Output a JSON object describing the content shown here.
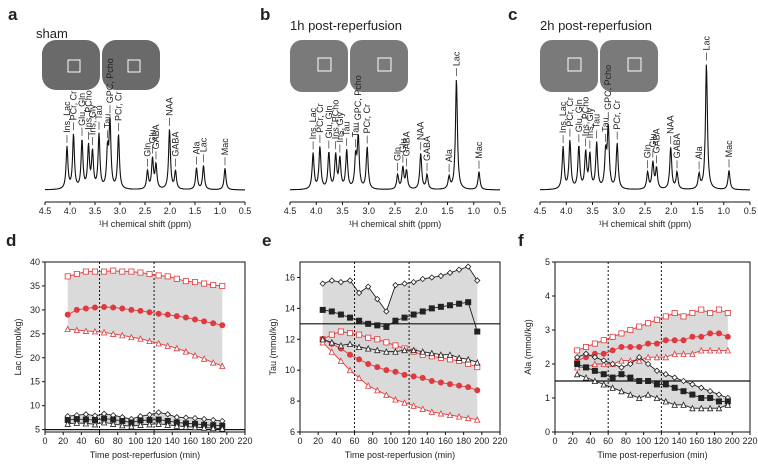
{
  "chart_data": [
    {
      "type": "spectrum",
      "panel": "a",
      "title": "sham",
      "xlabel": "¹H chemical shift (ppm)",
      "xlim": [
        4.5,
        0.5
      ],
      "xticks": [
        4.5,
        {
          "value": 4,
          "label": "4.0"
        },
        3.5,
        {
          "value": 3,
          "label": "3.0"
        },
        2.5,
        {
          "value": 2,
          "label": "2.0"
        },
        1.5,
        {
          "value": 1,
          "label": "1.0"
        },
        0.5
      ],
      "peaks": [
        {
          "label": "Ins, Lac",
          "ppm": 4.06,
          "h": 35
        },
        {
          "label": "PCr, Cr",
          "ppm": 3.93,
          "h": 45
        },
        {
          "label": "Glu, Gln",
          "ppm": 3.76,
          "h": 40
        },
        {
          "label": "Ins, PCho",
          "ppm": 3.63,
          "h": 35
        },
        {
          "label": "Ins, Gly",
          "ppm": 3.55,
          "h": 30
        },
        {
          "label": "Tau",
          "ppm": 3.42,
          "h": 45
        },
        {
          "label": "Tau",
          "ppm": 3.25,
          "h": 30
        },
        {
          "label": "GPC, Pcho",
          "ppm": 3.2,
          "h": 55
        },
        {
          "label": "PCr, Cr",
          "ppm": 3.03,
          "h": 45
        },
        {
          "label": "Glu",
          "ppm": 2.35,
          "h": 25
        },
        {
          "label": "GABA",
          "ppm": 2.28,
          "h": 20
        },
        {
          "label": "Gln",
          "ppm": 2.45,
          "h": 15
        },
        {
          "label": "NAA",
          "ppm": 2.01,
          "h": 50
        },
        {
          "label": "GABA",
          "ppm": 1.89,
          "h": 15
        },
        {
          "label": "Ala",
          "ppm": 1.47,
          "h": 18
        },
        {
          "label": "Lac",
          "ppm": 1.33,
          "h": 20
        },
        {
          "label": "Mac",
          "ppm": 0.9,
          "h": 18
        }
      ]
    },
    {
      "type": "spectrum",
      "panel": "b",
      "title": "1h post-reperfusion",
      "xlabel": "¹H chemical shift (ppm)",
      "xlim": [
        4.5,
        0.5
      ],
      "xticks": [
        4.5,
        {
          "value": 4,
          "label": "4.0"
        },
        3.5,
        {
          "value": 3,
          "label": "3.0"
        },
        2.5,
        {
          "value": 2,
          "label": "2.0"
        },
        1.5,
        {
          "value": 1,
          "label": "1.0"
        },
        0.5
      ],
      "peaks": [
        {
          "label": "Ins, Lac",
          "ppm": 4.06,
          "h": 30
        },
        {
          "label": "PCr, Cr",
          "ppm": 3.93,
          "h": 35
        },
        {
          "label": "Glu, Gln",
          "ppm": 3.76,
          "h": 30
        },
        {
          "label": "Ins, PCho",
          "ppm": 3.63,
          "h": 28
        },
        {
          "label": "Ins, Gly",
          "ppm": 3.55,
          "h": 25
        },
        {
          "label": "Tau",
          "ppm": 3.42,
          "h": 32
        },
        {
          "label": "Tau",
          "ppm": 3.25,
          "h": 25
        },
        {
          "label": "GPC, Pcho",
          "ppm": 3.2,
          "h": 42
        },
        {
          "label": "PCr, Cr",
          "ppm": 3.03,
          "h": 35
        },
        {
          "label": "Glu",
          "ppm": 2.35,
          "h": 18
        },
        {
          "label": "GABA",
          "ppm": 2.28,
          "h": 15
        },
        {
          "label": "Gln",
          "ppm": 2.45,
          "h": 12
        },
        {
          "label": "NAA",
          "ppm": 2.01,
          "h": 30
        },
        {
          "label": "GABA",
          "ppm": 1.89,
          "h": 12
        },
        {
          "label": "Ala",
          "ppm": 1.47,
          "h": 10
        },
        {
          "label": "Lac",
          "ppm": 1.33,
          "h": 92
        },
        {
          "label": "Mac",
          "ppm": 0.9,
          "h": 15
        }
      ]
    },
    {
      "type": "spectrum",
      "panel": "c",
      "title": "2h post-reperfusion",
      "xlabel": "¹H chemical shift (ppm)",
      "xlim": [
        4.5,
        0.5
      ],
      "xticks": [
        4.5,
        {
          "value": 4,
          "label": "4.0"
        },
        3.5,
        {
          "value": 3,
          "label": "3.0"
        },
        2.5,
        {
          "value": 2,
          "label": "2.0"
        },
        1.5,
        {
          "value": 1,
          "label": "1.0"
        },
        0.5
      ],
      "peaks": [
        {
          "label": "Ins, Lac",
          "ppm": 4.06,
          "h": 35
        },
        {
          "label": "PCr, Cr",
          "ppm": 3.93,
          "h": 40
        },
        {
          "label": "Glu, Gln",
          "ppm": 3.76,
          "h": 35
        },
        {
          "label": "Ins, PCho",
          "ppm": 3.63,
          "h": 30
        },
        {
          "label": "Ins, Gly",
          "ppm": 3.55,
          "h": 28
        },
        {
          "label": "Tau",
          "ppm": 3.42,
          "h": 38
        },
        {
          "label": "Tau",
          "ppm": 3.25,
          "h": 28
        },
        {
          "label": "GPC, Pcho",
          "ppm": 3.2,
          "h": 50
        },
        {
          "label": "PCr, Cr",
          "ppm": 3.03,
          "h": 38
        },
        {
          "label": "Glu",
          "ppm": 2.35,
          "h": 22
        },
        {
          "label": "GABA",
          "ppm": 2.28,
          "h": 17
        },
        {
          "label": "Gln",
          "ppm": 2.45,
          "h": 14
        },
        {
          "label": "NAA",
          "ppm": 2.01,
          "h": 35
        },
        {
          "label": "GABA",
          "ppm": 1.89,
          "h": 14
        },
        {
          "label": "Ala",
          "ppm": 1.47,
          "h": 12
        },
        {
          "label": "Lac",
          "ppm": 1.33,
          "h": 105
        },
        {
          "label": "Mac",
          "ppm": 0.9,
          "h": 16
        }
      ]
    },
    {
      "type": "line",
      "panel": "d",
      "ylabel": "Lac (mmol/kg)",
      "xlabel": "Time post-reperfusion (min)",
      "xlim": [
        0,
        220
      ],
      "xticks": [
        0,
        20,
        40,
        60,
        80,
        100,
        120,
        140,
        160,
        180,
        200,
        220
      ],
      "ylim": [
        4.5,
        40
      ],
      "yticks": [
        5,
        10,
        15,
        20,
        25,
        30,
        35,
        40
      ],
      "hline": 5,
      "vlines": [
        60,
        120
      ],
      "shade": "#d4d4d4",
      "x": [
        25,
        35,
        45,
        55,
        65,
        75,
        85,
        95,
        105,
        115,
        125,
        135,
        145,
        155,
        165,
        175,
        185,
        195
      ],
      "series": [
        {
          "color": "#e0393e",
          "marker": "square",
          "filled": false,
          "values": [
            37,
            37.5,
            38,
            38,
            38,
            38.2,
            38,
            38,
            37.8,
            37.5,
            37.2,
            37,
            36.5,
            36,
            35.8,
            35.5,
            35.2,
            35
          ]
        },
        {
          "color": "#e0393e",
          "marker": "circle",
          "filled": true,
          "values": [
            29,
            30,
            30.3,
            30.5,
            30.6,
            30.5,
            30.3,
            30,
            29.8,
            29.5,
            29.2,
            29,
            28.7,
            28.4,
            28,
            27.6,
            27.2,
            26.8
          ]
        },
        {
          "color": "#e0393e",
          "marker": "triangle",
          "filled": false,
          "values": [
            26,
            25.8,
            25.6,
            25.5,
            25.3,
            25,
            24.7,
            24.3,
            24,
            23.5,
            23,
            22.5,
            22,
            21.3,
            20.5,
            19.8,
            19,
            18.3
          ]
        },
        {
          "color": "#222222",
          "marker": "diamond",
          "filled": false,
          "values": [
            7.8,
            8,
            8.2,
            7.9,
            8.3,
            8,
            7.6,
            7.2,
            7.8,
            8.1,
            8.6,
            8.2,
            7.6,
            7.5,
            7.4,
            7.2,
            7,
            6.8
          ]
        },
        {
          "color": "#222222",
          "marker": "square",
          "filled": true,
          "values": [
            7,
            7.2,
            7.1,
            7,
            7.3,
            7.1,
            6.8,
            6.5,
            6.9,
            7,
            7.1,
            6.8,
            6.5,
            6.3,
            6.2,
            6,
            5.9,
            5.8
          ]
        },
        {
          "color": "#222222",
          "marker": "triangle",
          "filled": false,
          "values": [
            6.2,
            6.4,
            6.3,
            6.1,
            6.5,
            6.2,
            5.9,
            5.7,
            6,
            6.1,
            6.2,
            6,
            5.8,
            5.6,
            5.5,
            5.4,
            5.3,
            5.2
          ]
        }
      ]
    },
    {
      "type": "line",
      "panel": "e",
      "ylabel": "Tau (mmol/kg)",
      "xlabel": "Time post-reperfusion (min)",
      "xlim": [
        0,
        220
      ],
      "xticks": [
        0,
        20,
        40,
        60,
        80,
        100,
        120,
        140,
        160,
        180,
        200,
        220
      ],
      "ylim": [
        6,
        17
      ],
      "yticks": [
        6,
        8,
        10,
        12,
        14,
        16
      ],
      "hline": 13,
      "vlines": [
        60,
        120
      ],
      "shade": "#d4d4d4",
      "x": [
        25,
        35,
        45,
        55,
        65,
        75,
        85,
        95,
        105,
        115,
        125,
        135,
        145,
        155,
        165,
        175,
        185,
        195
      ],
      "series": [
        {
          "color": "#e0393e",
          "marker": "square",
          "filled": false,
          "values": [
            12,
            12.3,
            12.5,
            12.4,
            12.3,
            12.1,
            12,
            11.8,
            11.6,
            11.4,
            11.2,
            11,
            10.9,
            10.8,
            10.7,
            10.6,
            10.4,
            10.2
          ]
        },
        {
          "color": "#e0393e",
          "marker": "circle",
          "filled": true,
          "values": [
            12,
            11.7,
            11.4,
            11,
            10.7,
            10.4,
            10.2,
            10,
            9.9,
            9.7,
            9.6,
            9.5,
            9.3,
            9.2,
            9.1,
            9,
            8.9,
            8.7
          ]
        },
        {
          "color": "#e0393e",
          "marker": "triangle",
          "filled": false,
          "values": [
            11.8,
            11.2,
            10.6,
            10,
            9.5,
            9,
            8.7,
            8.4,
            8.1,
            7.9,
            7.7,
            7.5,
            7.3,
            7.2,
            7.1,
            7,
            6.9,
            6.8
          ]
        },
        {
          "color": "#222222",
          "marker": "diamond",
          "filled": false,
          "values": [
            15.6,
            15.8,
            15.7,
            15.8,
            15,
            15.4,
            14.6,
            13.8,
            15.5,
            15.6,
            15.7,
            15.9,
            16,
            16.1,
            16.3,
            16.5,
            16.7,
            15.8
          ]
        },
        {
          "color": "#222222",
          "marker": "square",
          "filled": true,
          "values": [
            13.9,
            13.8,
            13.6,
            13.4,
            13.2,
            13,
            12.9,
            12.8,
            13.2,
            13.4,
            13.6,
            13.8,
            14,
            14.1,
            14.2,
            14.3,
            14.4,
            12.5
          ]
        },
        {
          "color": "#222222",
          "marker": "triangle",
          "filled": false,
          "values": [
            12,
            11.8,
            11.6,
            11.7,
            11.5,
            11.4,
            11.3,
            11.2,
            11.2,
            11.3,
            11.3,
            11.2,
            11.1,
            11,
            11,
            10.8,
            10.7,
            10.5
          ]
        }
      ]
    },
    {
      "type": "line",
      "panel": "f",
      "ylabel": "Ala (mmol/kg)",
      "xlabel": "Time post-reperfusion (min)",
      "xlim": [
        0,
        220
      ],
      "xticks": [
        0,
        20,
        40,
        60,
        80,
        100,
        120,
        140,
        160,
        180,
        200,
        220
      ],
      "ylim": [
        0,
        5
      ],
      "yticks": [
        0,
        1,
        2,
        3,
        4,
        5
      ],
      "hline": 1.5,
      "vlines": [
        60,
        120
      ],
      "shade": "#d4d4d4",
      "x": [
        25,
        35,
        45,
        55,
        65,
        75,
        85,
        95,
        105,
        115,
        125,
        135,
        145,
        155,
        165,
        175,
        185,
        195
      ],
      "series": [
        {
          "color": "#e0393e",
          "marker": "square",
          "filled": false,
          "values": [
            2.4,
            2.5,
            2.6,
            2.7,
            2.8,
            2.9,
            3,
            3.1,
            3.2,
            3.3,
            3.4,
            3.5,
            3.4,
            3.5,
            3.6,
            3.5,
            3.6,
            3.5
          ]
        },
        {
          "color": "#e0393e",
          "marker": "circle",
          "filled": true,
          "values": [
            2.1,
            2.2,
            2.3,
            2.3,
            2.4,
            2.5,
            2.5,
            2.5,
            2.6,
            2.6,
            2.7,
            2.7,
            2.7,
            2.8,
            2.8,
            2.9,
            2.9,
            2.8
          ]
        },
        {
          "color": "#e0393e",
          "marker": "triangle",
          "filled": false,
          "values": [
            1.9,
            1.9,
            2,
            2,
            2,
            2.1,
            2.1,
            2.1,
            2.2,
            2.2,
            2.2,
            2.3,
            2.3,
            2.3,
            2.4,
            2.4,
            2.4,
            2.4
          ]
        },
        {
          "color": "#222222",
          "marker": "diamond",
          "filled": false,
          "values": [
            2.2,
            2.3,
            2.2,
            2.1,
            2,
            1.9,
            2,
            2.2,
            2,
            1.8,
            1.7,
            1.6,
            1.5,
            1.4,
            1.3,
            1.2,
            1.1,
            1
          ]
        },
        {
          "color": "#222222",
          "marker": "square",
          "filled": true,
          "values": [
            2,
            1.9,
            1.8,
            1.7,
            1.6,
            1.7,
            1.6,
            1.5,
            1.5,
            1.4,
            1.4,
            1.3,
            1.2,
            1.1,
            1,
            1,
            0.9,
            0.9
          ]
        },
        {
          "color": "#222222",
          "marker": "triangle",
          "filled": false,
          "values": [
            1.7,
            1.6,
            1.5,
            1.4,
            1.3,
            1.2,
            1.1,
            1,
            1.1,
            1,
            0.9,
            0.8,
            0.8,
            0.7,
            0.7,
            0.7,
            0.7,
            0.8
          ]
        }
      ]
    }
  ]
}
